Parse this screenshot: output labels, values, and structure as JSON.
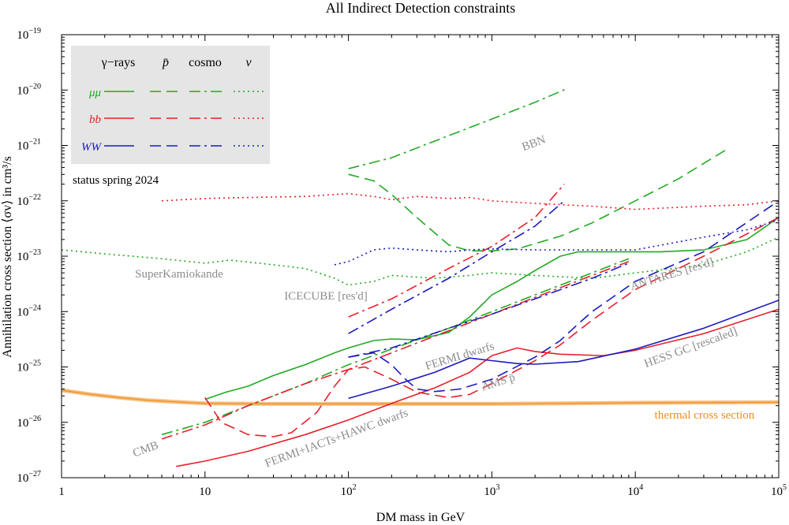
{
  "chart_data": {
    "type": "line",
    "title": "All Indirect Detection constraints",
    "xlabel": "DM mass in GeV",
    "ylabel": "Annihilation cross section ⟨σv⟩ in cm³/s",
    "xscale": "log",
    "yscale": "log",
    "xlim": [
      1,
      100000
    ],
    "ylim": [
      1e-27,
      1e-19
    ],
    "x_ticks": [
      {
        "value": 1,
        "base": "1",
        "exp": ""
      },
      {
        "value": 10,
        "base": "10",
        "exp": ""
      },
      {
        "value": 100,
        "base": "10",
        "exp": "2"
      },
      {
        "value": 1000,
        "base": "10",
        "exp": "3"
      },
      {
        "value": 10000,
        "base": "10",
        "exp": "4"
      },
      {
        "value": 100000,
        "base": "10",
        "exp": "5"
      }
    ],
    "y_ticks": [
      {
        "value": 1e-19,
        "base": "10",
        "exp": "−19"
      },
      {
        "value": 1e-20,
        "base": "10",
        "exp": "−20"
      },
      {
        "value": 1e-21,
        "base": "10",
        "exp": "−21"
      },
      {
        "value": 1e-22,
        "base": "10",
        "exp": "−22"
      },
      {
        "value": 1e-23,
        "base": "10",
        "exp": "−23"
      },
      {
        "value": 1e-24,
        "base": "10",
        "exp": "−24"
      },
      {
        "value": 1e-25,
        "base": "10",
        "exp": "−25"
      },
      {
        "value": 1e-26,
        "base": "10",
        "exp": "−26"
      },
      {
        "value": 1e-27,
        "base": "10",
        "exp": "−27"
      }
    ],
    "colors": {
      "mumu": "#22aa22",
      "bb": "#e8202a",
      "WW": "#1b1bbf",
      "thermal": "#f08c1e",
      "annotation": "#8c8c8c",
      "legend_bg": "#e5e5e5"
    },
    "legend": {
      "position": "top-left",
      "columns": [
        "γ−rays",
        "p̄",
        "cosmo",
        "ν"
      ],
      "rows": [
        {
          "label": "μμ",
          "color": "#22aa22"
        },
        {
          "label": "bb",
          "color": "#e8202a"
        },
        {
          "label": "WW",
          "color": "#1b1bbf"
        }
      ]
    },
    "status_text": "status spring 2024",
    "series": [
      {
        "name": "thermal cross section",
        "color": "#f08c1e",
        "style": "band",
        "points": [
          [
            1,
            3.8e-26
          ],
          [
            1.6,
            3.2e-26
          ],
          [
            2.5,
            2.8e-26
          ],
          [
            4,
            2.5e-26
          ],
          [
            7,
            2.3e-26
          ],
          [
            10,
            2.2e-26
          ],
          [
            30,
            2.15e-26
          ],
          [
            100,
            2.15e-26
          ],
          [
            1000,
            2.15e-26
          ],
          [
            10000,
            2.25e-26
          ],
          [
            100000,
            2.3e-26
          ]
        ]
      },
      {
        "name": "mumu gamma-rays",
        "color": "#22aa22",
        "style": "solid",
        "points": [
          [
            10,
            2.6e-26
          ],
          [
            14,
            3.5e-26
          ],
          [
            20,
            4.5e-26
          ],
          [
            30,
            7e-26
          ],
          [
            50,
            1.1e-25
          ],
          [
            80,
            1.8e-25
          ],
          [
            100,
            2.2e-25
          ],
          [
            150,
            3e-25
          ],
          [
            200,
            3.2e-25
          ],
          [
            300,
            3.1e-25
          ],
          [
            500,
            4.2e-25
          ],
          [
            700,
            8e-25
          ],
          [
            1000,
            2e-24
          ],
          [
            1500,
            3.5e-24
          ],
          [
            2000,
            5.5e-24
          ],
          [
            3000,
            1e-23
          ],
          [
            4000,
            1.2e-23
          ],
          [
            7000,
            1.2e-23
          ],
          [
            15000,
            1.2e-23
          ],
          [
            30000,
            1.3e-23
          ],
          [
            60000,
            2e-23
          ],
          [
            100000,
            5e-23
          ]
        ]
      },
      {
        "name": "mumu antiprotons",
        "color": "#22aa22",
        "style": "dashed",
        "points": [
          [
            100,
            3e-22
          ],
          [
            150,
            2.3e-22
          ],
          [
            200,
            1.3e-22
          ],
          [
            300,
            5e-23
          ],
          [
            500,
            1.6e-23
          ],
          [
            700,
            1.25e-23
          ],
          [
            1000,
            1.25e-23
          ],
          [
            1500,
            1.35e-23
          ],
          [
            3000,
            2.3e-23
          ],
          [
            5000,
            4e-23
          ],
          [
            10000,
            1e-22
          ],
          [
            20000,
            2.5e-22
          ],
          [
            45000,
            9e-22
          ]
        ]
      },
      {
        "name": "mumu cosmo",
        "color": "#22aa22",
        "style": "dashdot",
        "points": [
          [
            5,
            6e-27
          ],
          [
            10,
            1e-26
          ],
          [
            20,
            2e-26
          ],
          [
            50,
            5e-26
          ],
          [
            100,
            1.1e-25
          ],
          [
            200,
            2.1e-25
          ],
          [
            500,
            5e-25
          ],
          [
            1000,
            1e-24
          ],
          [
            2000,
            2e-24
          ],
          [
            5000,
            5e-24
          ],
          [
            9000,
            9e-24
          ]
        ]
      },
      {
        "name": "mumu BBN",
        "color": "#22aa22",
        "style": "dashdot",
        "points": [
          [
            100,
            3.8e-22
          ],
          [
            200,
            6e-22
          ],
          [
            500,
            1.5e-21
          ],
          [
            1000,
            3e-21
          ],
          [
            2000,
            6e-21
          ],
          [
            3300,
            1.05e-20
          ]
        ]
      },
      {
        "name": "mumu neutrino",
        "color": "#22aa22",
        "style": "dotted",
        "points": [
          [
            1,
            1.3e-23
          ],
          [
            2,
            1.1e-23
          ],
          [
            5,
            9e-24
          ],
          [
            10,
            7.5e-24
          ],
          [
            15,
            8.5e-24
          ],
          [
            30,
            7e-24
          ],
          [
            50,
            6e-24
          ],
          [
            80,
            4e-24
          ],
          [
            100,
            3e-24
          ],
          [
            150,
            3.5e-24
          ],
          [
            200,
            4.5e-24
          ],
          [
            400,
            4e-24
          ],
          [
            700,
            4.5e-24
          ],
          [
            1000,
            5e-24
          ],
          [
            2000,
            4.5e-24
          ],
          [
            5000,
            4e-24
          ],
          [
            10000,
            5e-24
          ],
          [
            30000,
            7e-24
          ],
          [
            60000,
            1.2e-23
          ],
          [
            100000,
            2.2e-23
          ]
        ]
      },
      {
        "name": "bb gamma-rays",
        "color": "#e8202a",
        "style": "solid",
        "points": [
          [
            6.3,
            1.6e-27
          ],
          [
            10,
            2e-27
          ],
          [
            20,
            3e-27
          ],
          [
            50,
            6e-27
          ],
          [
            100,
            1.1e-26
          ],
          [
            200,
            2.2e-26
          ],
          [
            400,
            4.2e-26
          ],
          [
            700,
            8e-26
          ],
          [
            1000,
            1.6e-25
          ],
          [
            1500,
            2.2e-25
          ],
          [
            2000,
            1.9e-25
          ],
          [
            3000,
            1.7e-25
          ],
          [
            6000,
            1.6e-25
          ],
          [
            10000,
            2e-25
          ],
          [
            30000,
            4e-25
          ],
          [
            100000,
            1.1e-24
          ]
        ]
      },
      {
        "name": "bb antiprotons",
        "color": "#e8202a",
        "style": "dashed",
        "points": [
          [
            10,
            2.8e-26
          ],
          [
            13,
            1e-26
          ],
          [
            20,
            6e-27
          ],
          [
            30,
            5.5e-27
          ],
          [
            40,
            6.5e-27
          ],
          [
            60,
            1.5e-26
          ],
          [
            80,
            4.5e-26
          ],
          [
            100,
            9e-26
          ],
          [
            130,
            1e-25
          ],
          [
            200,
            6e-26
          ],
          [
            300,
            3.5e-26
          ],
          [
            500,
            2.8e-26
          ],
          [
            700,
            3.2e-26
          ],
          [
            1000,
            5e-26
          ],
          [
            2000,
            1.3e-25
          ],
          [
            3000,
            2.5e-25
          ],
          [
            5000,
            7e-25
          ],
          [
            10000,
            2.5e-24
          ],
          [
            30000,
            1e-23
          ],
          [
            100000,
            5e-23
          ]
        ]
      },
      {
        "name": "bb cosmo",
        "color": "#e8202a",
        "style": "dashdot",
        "points": [
          [
            5,
            5e-27
          ],
          [
            10,
            9e-27
          ],
          [
            20,
            2e-26
          ],
          [
            50,
            5e-26
          ],
          [
            100,
            9e-26
          ],
          [
            200,
            1.8e-25
          ],
          [
            500,
            4.5e-25
          ],
          [
            1000,
            9e-25
          ],
          [
            2000,
            1.8e-24
          ],
          [
            5000,
            4.5e-24
          ],
          [
            9000,
            8e-24
          ]
        ]
      },
      {
        "name": "bb BBN",
        "color": "#e8202a",
        "style": "dashdot",
        "points": [
          [
            100,
            8e-25
          ],
          [
            200,
            1.7e-24
          ],
          [
            500,
            6e-24
          ],
          [
            1000,
            1.5e-23
          ],
          [
            2000,
            5e-23
          ],
          [
            3200,
            2e-22
          ]
        ]
      },
      {
        "name": "bb neutrino",
        "color": "#e8202a",
        "style": "dotted",
        "points": [
          [
            5,
            1e-22
          ],
          [
            10,
            1.1e-22
          ],
          [
            20,
            1.15e-22
          ],
          [
            50,
            1.2e-22
          ],
          [
            100,
            1.35e-22
          ],
          [
            150,
            1.2e-22
          ],
          [
            200,
            1.05e-22
          ],
          [
            300,
            1.2e-22
          ],
          [
            500,
            1.1e-22
          ],
          [
            700,
            1.15e-22
          ],
          [
            1000,
            1e-22
          ],
          [
            2000,
            9e-23
          ],
          [
            5000,
            8e-23
          ],
          [
            10000,
            7e-23
          ],
          [
            30000,
            8e-23
          ],
          [
            60000,
            8.5e-23
          ],
          [
            100000,
            1e-22
          ]
        ]
      },
      {
        "name": "WW gamma-rays",
        "color": "#1b1bbf",
        "style": "solid",
        "points": [
          [
            100,
            2.7e-26
          ],
          [
            200,
            4.5e-26
          ],
          [
            400,
            8e-26
          ],
          [
            700,
            1.45e-25
          ],
          [
            1000,
            1.3e-25
          ],
          [
            1500,
            1.15e-25
          ],
          [
            2000,
            1.12e-25
          ],
          [
            4000,
            1.25e-25
          ],
          [
            10000,
            2.1e-25
          ],
          [
            30000,
            5e-25
          ],
          [
            100000,
            1.6e-24
          ]
        ]
      },
      {
        "name": "WW antiprotons",
        "color": "#1b1bbf",
        "style": "dashed",
        "points": [
          [
            100,
            1.5e-25
          ],
          [
            150,
            1.8e-25
          ],
          [
            200,
            1.1e-25
          ],
          [
            250,
            6e-26
          ],
          [
            300,
            4e-26
          ],
          [
            400,
            3.6e-26
          ],
          [
            600,
            4e-26
          ],
          [
            1000,
            6e-26
          ],
          [
            2000,
            1.5e-25
          ],
          [
            3000,
            3e-25
          ],
          [
            4000,
            6e-25
          ],
          [
            5000,
            1e-24
          ],
          [
            10000,
            3.5e-24
          ],
          [
            30000,
            1.2e-23
          ],
          [
            100000,
            1e-22
          ]
        ]
      },
      {
        "name": "WW cosmo",
        "color": "#1b1bbf",
        "style": "dashdot",
        "points": [
          [
            100,
            1.5e-25
          ],
          [
            200,
            2.2e-25
          ],
          [
            500,
            5e-25
          ],
          [
            1000,
            9e-25
          ],
          [
            2000,
            1.7e-24
          ],
          [
            5000,
            4e-24
          ],
          [
            9000,
            7.5e-24
          ]
        ]
      },
      {
        "name": "WW BBN",
        "color": "#1b1bbf",
        "style": "dashdot",
        "points": [
          [
            100,
            4e-25
          ],
          [
            200,
            1.1e-24
          ],
          [
            500,
            4e-24
          ],
          [
            1000,
            1.2e-23
          ],
          [
            2000,
            3.5e-23
          ],
          [
            3200,
            1e-22
          ]
        ]
      },
      {
        "name": "WW neutrino",
        "color": "#1b1bbf",
        "style": "dotted",
        "points": [
          [
            80,
            7e-24
          ],
          [
            100,
            8e-24
          ],
          [
            150,
            1.3e-23
          ],
          [
            200,
            1.4e-23
          ],
          [
            300,
            1.3e-23
          ],
          [
            500,
            1.2e-23
          ],
          [
            700,
            1.3e-23
          ],
          [
            1000,
            1.35e-23
          ],
          [
            2000,
            1.3e-23
          ],
          [
            5000,
            1.3e-23
          ],
          [
            10000,
            1.3e-23
          ],
          [
            30000,
            2.2e-23
          ],
          [
            60000,
            3e-23
          ],
          [
            100000,
            4.5e-23
          ]
        ]
      }
    ],
    "annotations": [
      {
        "text": "BBN",
        "color": "gray"
      },
      {
        "text": "SuperKamiokande",
        "color": "gray"
      },
      {
        "text": "ICECUBE [res'd]",
        "color": "gray"
      },
      {
        "text": "ANTARES [res'd]",
        "color": "gray"
      },
      {
        "text": "FERMI dwarfs",
        "color": "gray"
      },
      {
        "text": "AMS p̄",
        "color": "gray"
      },
      {
        "text": "HESS GC [rescaled]",
        "color": "gray"
      },
      {
        "text": "thermal cross section",
        "color": "orange"
      },
      {
        "text": "CMB",
        "color": "gray"
      },
      {
        "text": "FERMI+IACTs+HAWC dwarfs",
        "color": "gray"
      }
    ]
  }
}
